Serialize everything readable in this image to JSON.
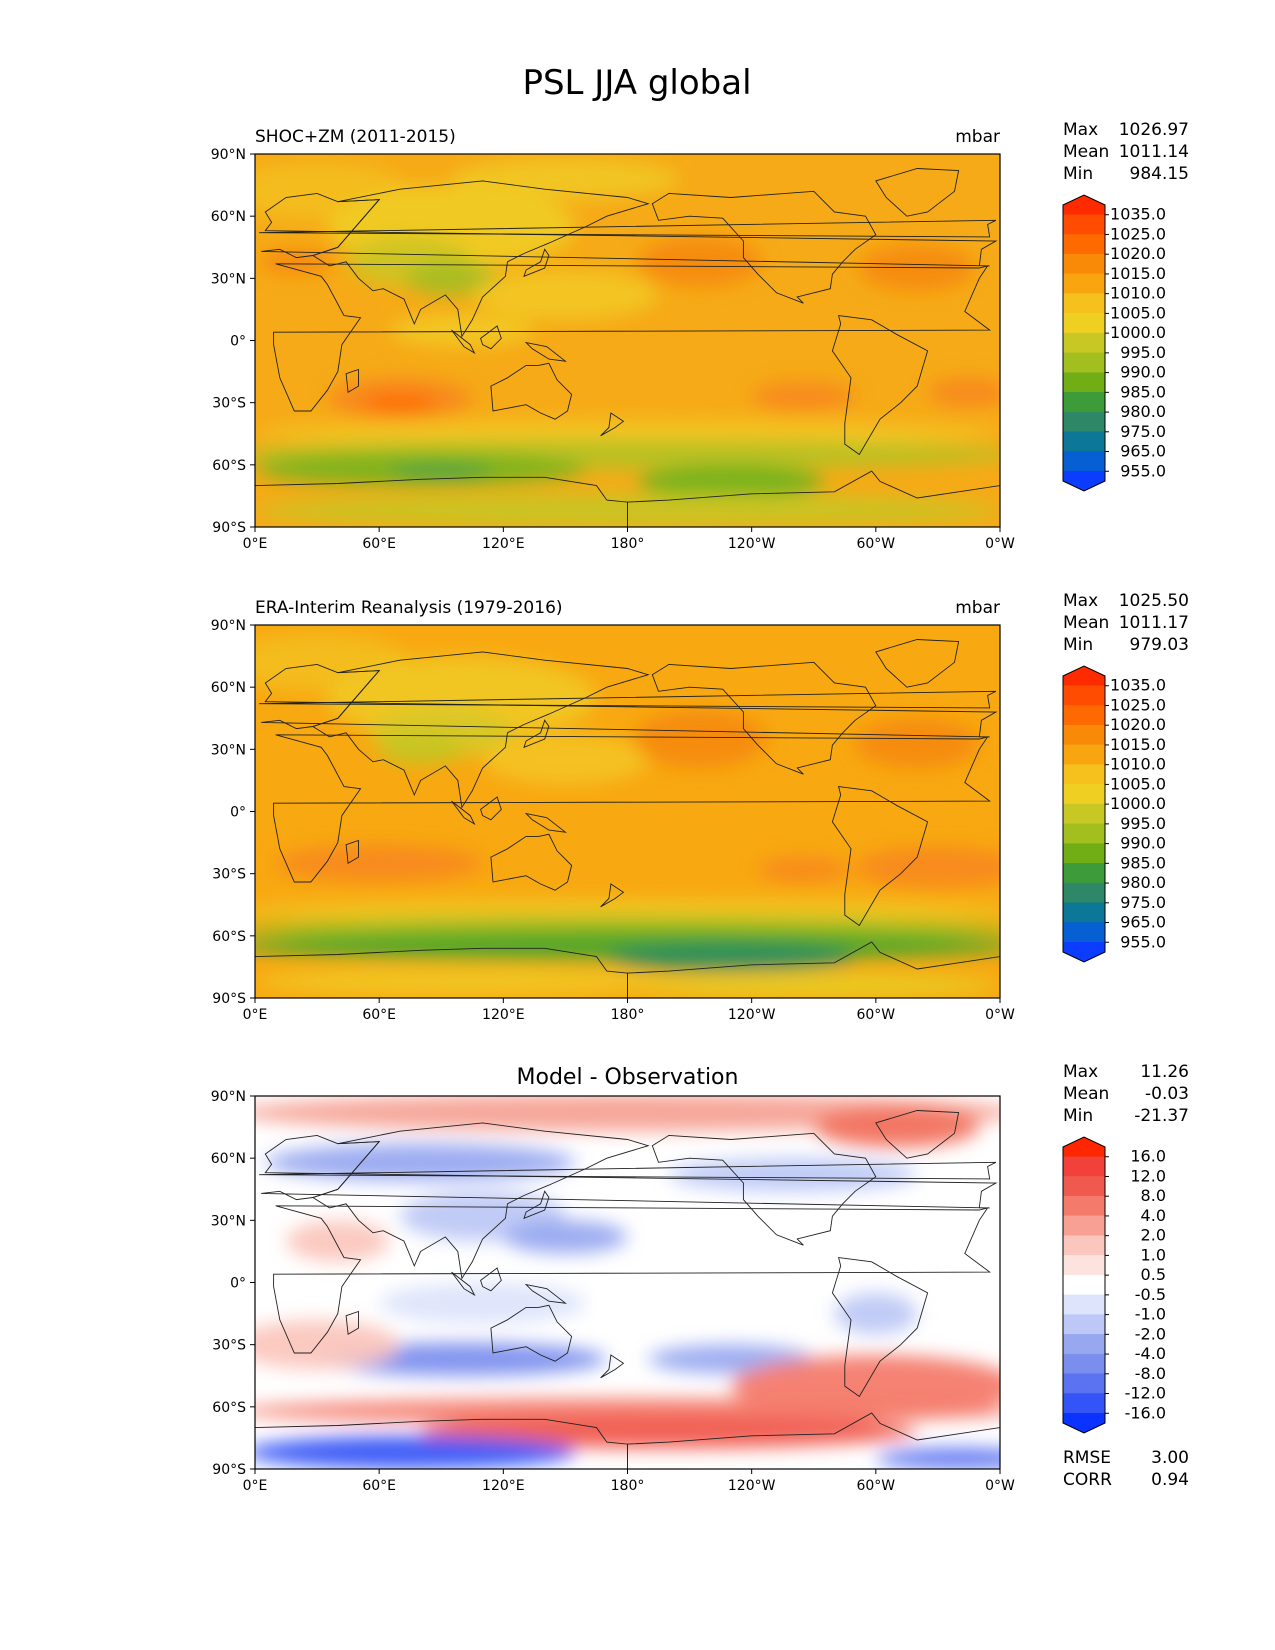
{
  "figure": {
    "title": "PSL JJA global"
  },
  "axes": {
    "lat_ticks": [
      "90°N",
      "60°N",
      "30°N",
      "0°",
      "30°S",
      "60°S",
      "90°S"
    ],
    "lon_ticks": [
      "0°E",
      "60°E",
      "120°E",
      "180°",
      "120°W",
      "60°W",
      "0°W"
    ]
  },
  "panels": [
    {
      "id": "test",
      "title_left": "SHOC+ZM (2011-2015)",
      "title_center": "",
      "units": "mbar",
      "stats": [
        {
          "label": "Max",
          "value": "1026.97"
        },
        {
          "label": "Mean",
          "value": "1011.14"
        },
        {
          "label": "Min",
          "value": "984.15"
        }
      ],
      "extra_stats": [],
      "colorbar": {
        "labels": [
          "1035.0",
          "1025.0",
          "1020.0",
          "1015.0",
          "1010.0",
          "1005.0",
          "1000.0",
          "995.0",
          "990.0",
          "985.0",
          "980.0",
          "975.0",
          "965.0",
          "955.0"
        ],
        "colors": [
          "#fe2a00",
          "#ff4c00",
          "#ff6a00",
          "#f98a07",
          "#f8a510",
          "#f6c11d",
          "#f0cf23",
          "#c7c823",
          "#a2bf1f",
          "#71ae16",
          "#3d9b3a",
          "#2e8868",
          "#0c7796",
          "#065fd3",
          "#0c3dff"
        ]
      },
      "field": {
        "base_color": "#f6aa17",
        "blobs": [
          {
            "lon": 30,
            "lat": 72,
            "rx": 45,
            "ry": 14,
            "color": "#f3bd20"
          },
          {
            "lon": 150,
            "lat": 78,
            "rx": 55,
            "ry": 10,
            "color": "#f1c624"
          },
          {
            "lon": 95,
            "lat": 55,
            "rx": 60,
            "ry": 20,
            "color": "#f0cb24"
          },
          {
            "lon": 75,
            "lat": 38,
            "rx": 30,
            "ry": 12,
            "color": "#cdc523"
          },
          {
            "lon": 95,
            "lat": 30,
            "rx": 22,
            "ry": 8,
            "color": "#a8bd21"
          },
          {
            "lon": 150,
            "lat": 22,
            "rx": 45,
            "ry": 12,
            "color": "#f2c625"
          },
          {
            "lon": 100,
            "lat": 5,
            "rx": 35,
            "ry": 8,
            "color": "#f2c823"
          },
          {
            "lon": 215,
            "lat": 38,
            "rx": 30,
            "ry": 12,
            "color": "#f58a09"
          },
          {
            "lon": 320,
            "lat": 35,
            "rx": 28,
            "ry": 11,
            "color": "#f58a09"
          },
          {
            "lon": 20,
            "lat": 38,
            "rx": 18,
            "ry": 6,
            "color": "#f58a09"
          },
          {
            "lon": 70,
            "lat": -28,
            "rx": 35,
            "ry": 10,
            "color": "#f8891a"
          },
          {
            "lon": 70,
            "lat": -30,
            "rx": 18,
            "ry": 4,
            "color": "#ff6a00"
          },
          {
            "lon": 265,
            "lat": -27,
            "rx": 25,
            "ry": 7,
            "color": "#f8891a"
          },
          {
            "lon": 345,
            "lat": -25,
            "rx": 20,
            "ry": 7,
            "color": "#f8891a"
          },
          {
            "lon": 180,
            "lat": -45,
            "rx": 180,
            "ry": 7,
            "color": "#f3c422"
          },
          {
            "lon": 180,
            "lat": -55,
            "rx": 190,
            "ry": 7,
            "color": "#b5c223"
          },
          {
            "lon": 80,
            "lat": -62,
            "rx": 80,
            "ry": 8,
            "color": "#7bb21b"
          },
          {
            "lon": 90,
            "lat": -63,
            "rx": 25,
            "ry": 3,
            "color": "#40a04a"
          },
          {
            "lon": 230,
            "lat": -68,
            "rx": 45,
            "ry": 8,
            "color": "#73b21a"
          },
          {
            "lon": 180,
            "lat": -82,
            "rx": 180,
            "ry": 8,
            "color": "#c8c523"
          }
        ]
      }
    },
    {
      "id": "reference",
      "title_left": "ERA-Interim Reanalysis (1979-2016)",
      "title_center": "",
      "units": "mbar",
      "stats": [
        {
          "label": "Max",
          "value": "1025.50"
        },
        {
          "label": "Mean",
          "value": "1011.17"
        },
        {
          "label": "Min",
          "value": "979.03"
        }
      ],
      "extra_stats": [],
      "colorbar": {
        "labels": [
          "1035.0",
          "1025.0",
          "1020.0",
          "1015.0",
          "1010.0",
          "1005.0",
          "1000.0",
          "995.0",
          "990.0",
          "985.0",
          "980.0",
          "975.0",
          "965.0",
          "955.0"
        ],
        "colors": [
          "#fe2a00",
          "#ff4c00",
          "#ff6a00",
          "#f98a07",
          "#f8a510",
          "#f6c11d",
          "#f0cf23",
          "#c7c823",
          "#a2bf1f",
          "#71ae16",
          "#3d9b3a",
          "#2e8868",
          "#0c7796",
          "#065fd3",
          "#0c3dff"
        ]
      },
      "field": {
        "base_color": "#f8a811",
        "blobs": [
          {
            "lon": 30,
            "lat": 72,
            "rx": 45,
            "ry": 14,
            "color": "#f3bd20"
          },
          {
            "lon": 100,
            "lat": 55,
            "rx": 65,
            "ry": 20,
            "color": "#f1c724"
          },
          {
            "lon": 90,
            "lat": 38,
            "rx": 35,
            "ry": 12,
            "color": "#d7c826"
          },
          {
            "lon": 80,
            "lat": 30,
            "rx": 20,
            "ry": 7,
            "color": "#c4c523"
          },
          {
            "lon": 150,
            "lat": 25,
            "rx": 40,
            "ry": 12,
            "color": "#f4c322"
          },
          {
            "lon": 215,
            "lat": 35,
            "rx": 32,
            "ry": 14,
            "color": "#f58a09"
          },
          {
            "lon": 320,
            "lat": 33,
            "rx": 30,
            "ry": 12,
            "color": "#f58a09"
          },
          {
            "lon": 60,
            "lat": -25,
            "rx": 50,
            "ry": 9,
            "color": "#f8891a"
          },
          {
            "lon": 330,
            "lat": -27,
            "rx": 40,
            "ry": 10,
            "color": "#f8891a"
          },
          {
            "lon": 265,
            "lat": -28,
            "rx": 22,
            "ry": 6,
            "color": "#f8891a"
          },
          {
            "lon": 180,
            "lat": -48,
            "rx": 190,
            "ry": 6,
            "color": "#f1c623"
          },
          {
            "lon": 180,
            "lat": -57,
            "rx": 190,
            "ry": 6,
            "color": "#9cbd1e"
          },
          {
            "lon": 180,
            "lat": -65,
            "rx": 190,
            "ry": 7,
            "color": "#4aa52a"
          },
          {
            "lon": 230,
            "lat": -70,
            "rx": 60,
            "ry": 7,
            "color": "#2e8e5e"
          },
          {
            "lon": 100,
            "lat": -82,
            "rx": 100,
            "ry": 7,
            "color": "#f1c624"
          },
          {
            "lon": 270,
            "lat": -84,
            "rx": 90,
            "ry": 6,
            "color": "#e8cb23"
          }
        ]
      }
    },
    {
      "id": "diff",
      "title_left": "",
      "title_center": "Model - Observation",
      "units": "",
      "stats": [
        {
          "label": "Max",
          "value": "11.26"
        },
        {
          "label": "Mean",
          "value": "-0.03"
        },
        {
          "label": "Min",
          "value": "-21.37"
        }
      ],
      "extra_stats": [
        {
          "label": "RMSE",
          "value": "3.00"
        },
        {
          "label": "CORR",
          "value": "0.94"
        }
      ],
      "colorbar": {
        "labels": [
          "16.0",
          "12.0",
          "8.0",
          "4.0",
          "2.0",
          "1.0",
          "0.5",
          "-0.5",
          "-1.0",
          "-2.0",
          "-4.0",
          "-8.0",
          "-12.0",
          "-16.0"
        ],
        "colors": [
          "#ff2600",
          "#f2413a",
          "#f05a4e",
          "#f47b6c",
          "#f8a094",
          "#fbc6bd",
          "#fde3dd",
          "#ffffff",
          "#dde4fb",
          "#bdc8f6",
          "#97a8f0",
          "#7b8eee",
          "#5b72f1",
          "#3554f7",
          "#0a33ff"
        ]
      },
      "field": {
        "base_color": "#ffffff",
        "blobs": [
          {
            "lon": 180,
            "lat": 82,
            "rx": 190,
            "ry": 9,
            "color": "#f6a195"
          },
          {
            "lon": 310,
            "lat": 75,
            "rx": 40,
            "ry": 10,
            "color": "#f2735f"
          },
          {
            "lon": 80,
            "lat": 58,
            "rx": 75,
            "ry": 9,
            "color": "#97a8f0"
          },
          {
            "lon": 260,
            "lat": 52,
            "rx": 60,
            "ry": 8,
            "color": "#bcc8f6"
          },
          {
            "lon": 110,
            "lat": 32,
            "rx": 40,
            "ry": 12,
            "color": "#bdc8f6"
          },
          {
            "lon": 150,
            "lat": 22,
            "rx": 30,
            "ry": 8,
            "color": "#97a8f0"
          },
          {
            "lon": 40,
            "lat": 20,
            "rx": 25,
            "ry": 10,
            "color": "#fbc6bd"
          },
          {
            "lon": 110,
            "lat": -10,
            "rx": 50,
            "ry": 10,
            "color": "#dde4fb"
          },
          {
            "lon": 100,
            "lat": -37,
            "rx": 70,
            "ry": 8,
            "color": "#7b8eee"
          },
          {
            "lon": 230,
            "lat": -37,
            "rx": 40,
            "ry": 7,
            "color": "#97a8f0"
          },
          {
            "lon": 300,
            "lat": -15,
            "rx": 20,
            "ry": 10,
            "color": "#bdc8f6"
          },
          {
            "lon": 30,
            "lat": -30,
            "rx": 40,
            "ry": 12,
            "color": "#fbc6bd"
          },
          {
            "lon": 300,
            "lat": -50,
            "rx": 70,
            "ry": 15,
            "color": "#f47b6c"
          },
          {
            "lon": 180,
            "lat": -62,
            "rx": 190,
            "ry": 6,
            "color": "#f47b6c"
          },
          {
            "lon": 200,
            "lat": -72,
            "rx": 120,
            "ry": 8,
            "color": "#f05a4e"
          },
          {
            "lon": 75,
            "lat": -82,
            "rx": 80,
            "ry": 8,
            "color": "#3554f7"
          },
          {
            "lon": 340,
            "lat": -85,
            "rx": 40,
            "ry": 5,
            "color": "#5b72f1"
          }
        ]
      }
    }
  ]
}
